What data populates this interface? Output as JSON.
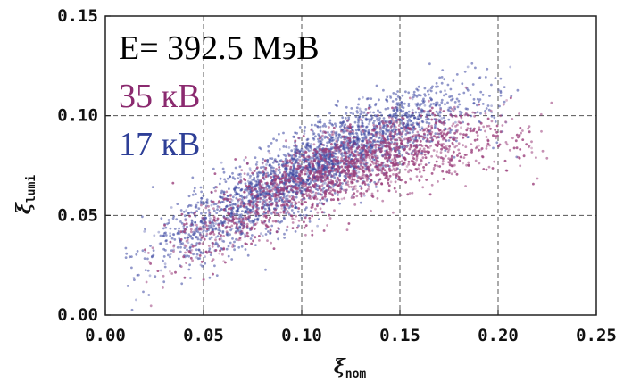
{
  "chart_data": {
    "type": "scatter",
    "title": "",
    "xlabel": "ξ",
    "xlabel_sub": "nom",
    "ylabel": "ξ",
    "ylabel_sub": "lumi",
    "xlim": [
      0.0,
      0.25
    ],
    "ylim": [
      0.0,
      0.15
    ],
    "x_ticks": [
      "0.00",
      "0.05",
      "0.10",
      "0.15",
      "0.20",
      "0.25"
    ],
    "y_ticks": [
      "0.00",
      "0.05",
      "0.10",
      "0.15"
    ],
    "x_tick_values": [
      0.0,
      0.05,
      0.1,
      0.15,
      0.2,
      0.25
    ],
    "y_tick_values": [
      0.0,
      0.05,
      0.1,
      0.15
    ],
    "grid": "dashed",
    "annotations": [
      {
        "text": "E= 392.5 МэВ",
        "color": "#000000"
      },
      {
        "text": "35 кВ",
        "color": "#8b2a6f"
      },
      {
        "text": "17 кВ",
        "color": "#2e3f97"
      }
    ],
    "series": [
      {
        "color": "#3b45a0",
        "trend": [
          [
            0.02,
            0.028
          ],
          [
            0.05,
            0.045
          ],
          [
            0.08,
            0.06
          ],
          [
            0.11,
            0.078
          ],
          [
            0.14,
            0.09
          ],
          [
            0.17,
            0.102
          ],
          [
            0.19,
            0.108
          ]
        ]
      },
      {
        "color": "#9b3f7c",
        "trend": [
          [
            0.03,
            0.03
          ],
          [
            0.06,
            0.046
          ],
          [
            0.09,
            0.062
          ],
          [
            0.12,
            0.074
          ],
          [
            0.15,
            0.082
          ],
          [
            0.18,
            0.088
          ],
          [
            0.21,
            0.09
          ]
        ]
      }
    ]
  }
}
